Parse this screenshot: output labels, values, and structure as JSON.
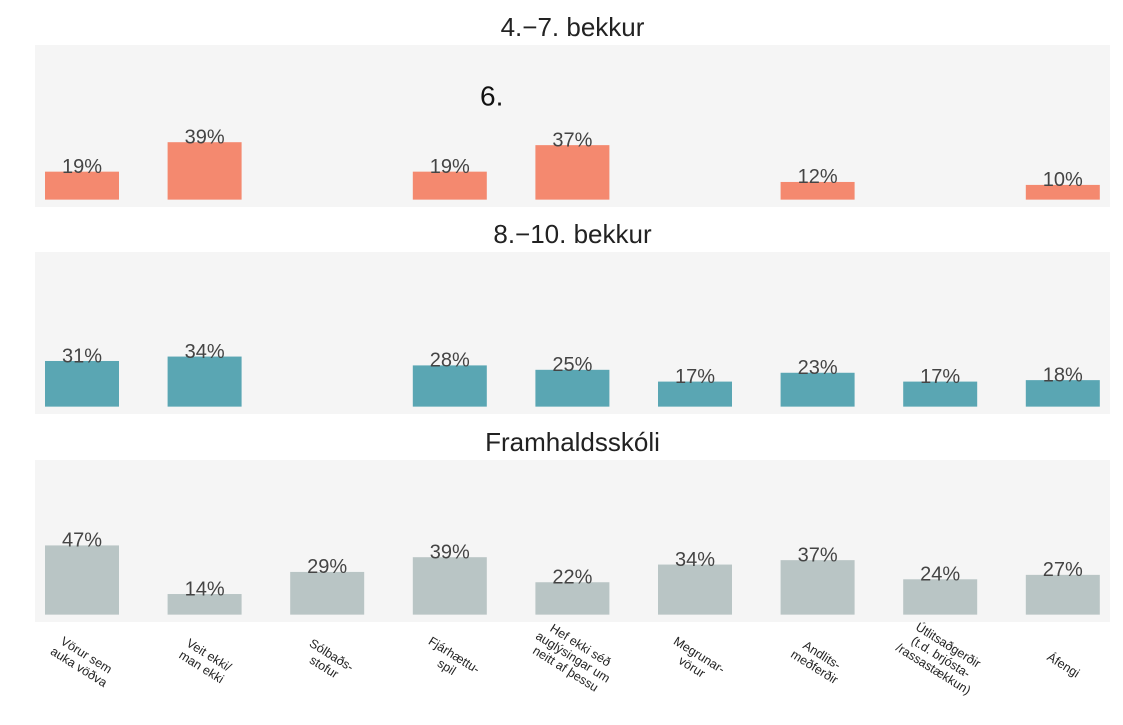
{
  "chart_data": [
    {
      "type": "bar",
      "title": "4.−7. bekkur",
      "color": "#f4896f",
      "ylim": [
        -5,
        105
      ],
      "values": [
        19,
        39,
        null,
        19,
        37,
        null,
        12,
        null,
        10
      ],
      "value_labels": [
        "19%",
        "39%",
        null,
        "19%",
        "37%",
        null,
        "12%",
        null,
        "10%"
      ],
      "annotations": [
        {
          "text": "6."
        }
      ]
    },
    {
      "type": "bar",
      "title": "8.−10. bekkur",
      "color": "#5aa6b3",
      "ylim": [
        -5,
        105
      ],
      "values": [
        31,
        34,
        null,
        28,
        25,
        17,
        23,
        17,
        18
      ],
      "value_labels": [
        "31%",
        "34%",
        null,
        "28%",
        "25%",
        "17%",
        "23%",
        "17%",
        "18%"
      ]
    },
    {
      "type": "bar",
      "title": "Framhaldsskóli",
      "color": "#b9c5c5",
      "ylim": [
        -5,
        105
      ],
      "values": [
        47,
        14,
        29,
        39,
        22,
        34,
        37,
        24,
        27
      ],
      "value_labels": [
        "47%",
        "14%",
        "29%",
        "39%",
        "22%",
        "34%",
        "37%",
        "24%",
        "27%"
      ],
      "categories": [
        [
          "Vörur sem",
          "auka vöðva"
        ],
        [
          "Veit ekki/",
          "man ekki"
        ],
        [
          "Sólbaðs-",
          "stofur"
        ],
        [
          "Fjárhættu-",
          "spil"
        ],
        [
          "Hef ekki séð",
          "auglýsingar um",
          "neitt af þessu"
        ],
        [
          "Megrunar-",
          "vörur"
        ],
        [
          "Andlits-",
          "meðferðir"
        ],
        [
          "Útlitsaðgerðir",
          "(t.d. brjósta-",
          "/rassastækkun)"
        ],
        [
          "Áfengi"
        ]
      ]
    }
  ]
}
